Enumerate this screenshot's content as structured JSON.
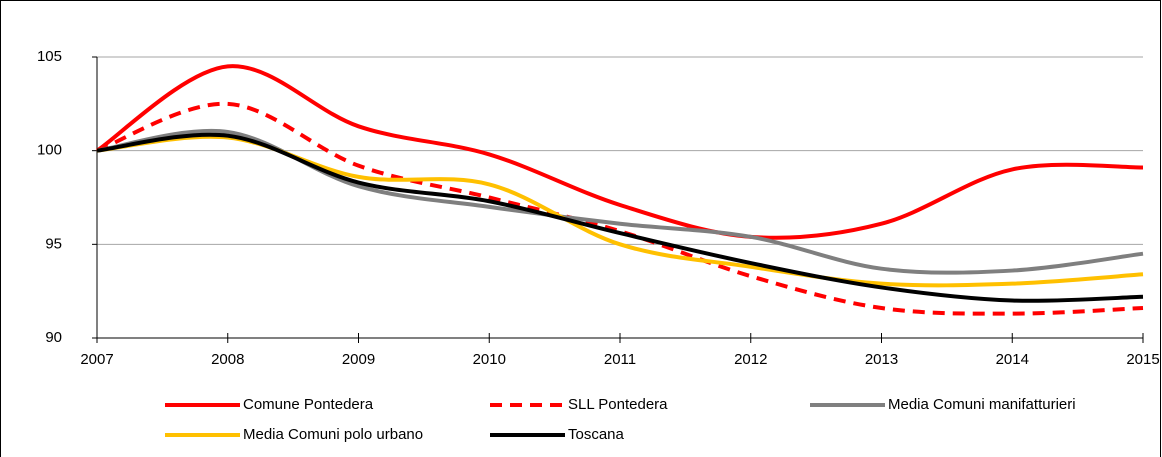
{
  "chart_data": {
    "type": "line",
    "x": [
      2007,
      2008,
      2009,
      2010,
      2011,
      2012,
      2013,
      2014,
      2015
    ],
    "series": [
      {
        "name": "Comune Pontedera",
        "color": "#ff0000",
        "dash": false,
        "values": [
          100,
          104.5,
          101.3,
          99.8,
          97.1,
          95.4,
          96.1,
          99.0,
          99.1
        ]
      },
      {
        "name": "SLL Pontedera",
        "color": "#ff0000",
        "dash": true,
        "values": [
          100,
          102.5,
          99.2,
          97.5,
          95.7,
          93.3,
          91.6,
          91.3,
          91.6
        ]
      },
      {
        "name": "Media Comuni manifatturieri",
        "color": "#7f7f7f",
        "dash": false,
        "values": [
          100,
          101.0,
          98.1,
          97.0,
          96.1,
          95.4,
          93.7,
          93.6,
          94.5
        ]
      },
      {
        "name": "Media Comuni polo urbano",
        "color": "#ffc000",
        "dash": false,
        "values": [
          100,
          100.7,
          98.6,
          98.2,
          95.0,
          93.8,
          92.9,
          92.9,
          93.4
        ]
      },
      {
        "name": "Toscana",
        "color": "#000000",
        "dash": false,
        "values": [
          100,
          100.8,
          98.3,
          97.3,
          95.6,
          94.0,
          92.7,
          92.0,
          92.2
        ]
      }
    ],
    "xlim": [
      2007,
      2015
    ],
    "xticks": [
      2007,
      2008,
      2009,
      2010,
      2011,
      2012,
      2013,
      2014,
      2015
    ],
    "ylim": [
      90,
      105
    ],
    "yticks": [
      90,
      95,
      100,
      105
    ],
    "grid": true
  }
}
